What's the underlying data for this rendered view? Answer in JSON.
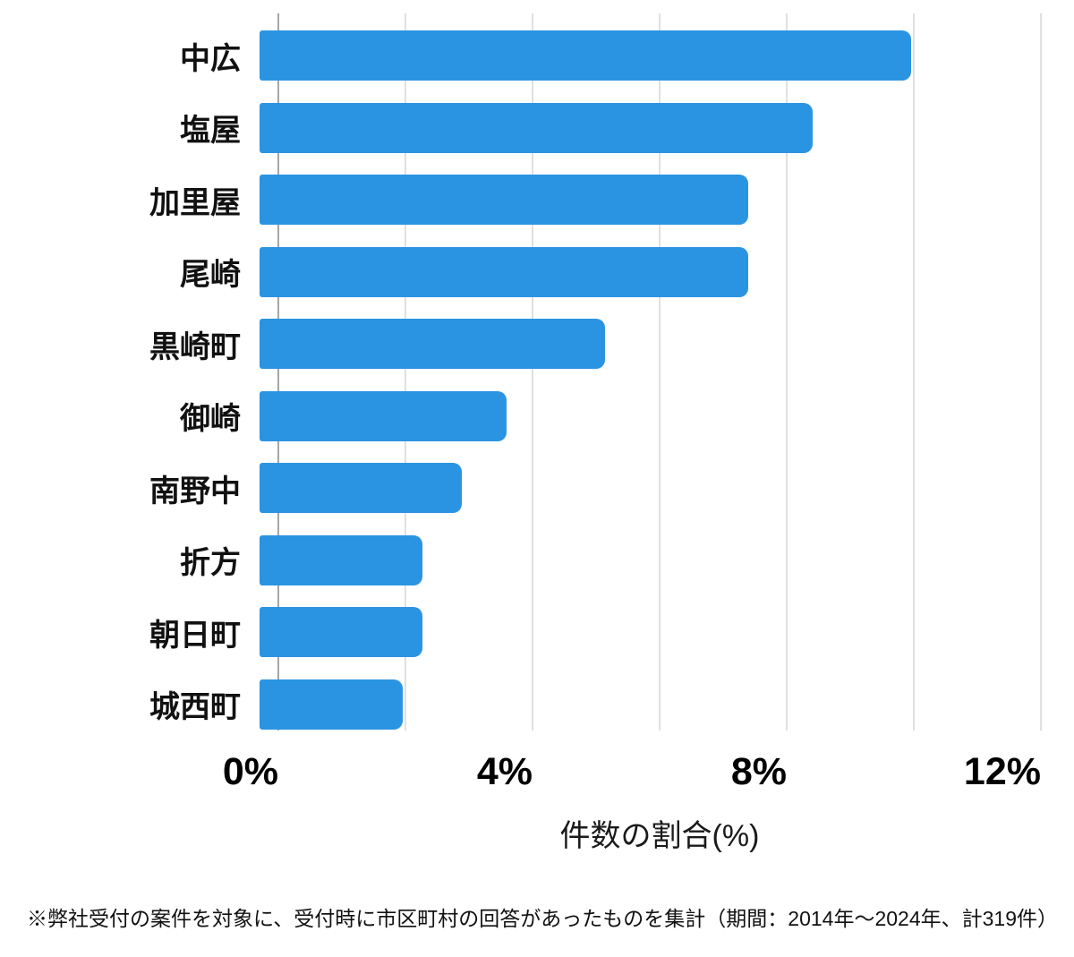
{
  "chart_data": {
    "type": "bar",
    "orientation": "horizontal",
    "title": "",
    "categories": [
      "中広",
      "塩屋",
      "加里屋",
      "尾崎",
      "黒崎町",
      "御崎",
      "南野中",
      "折方",
      "朝日町",
      "城西町"
    ],
    "values": [
      10.0,
      8.5,
      7.5,
      7.5,
      5.3,
      3.8,
      3.1,
      2.5,
      2.5,
      2.2
    ],
    "xlabel": "件数の割合(%)",
    "ylabel": "",
    "xlim": [
      0,
      12
    ],
    "x_ticks": [
      0,
      4,
      8,
      12
    ],
    "x_tick_labels": [
      "0%",
      "4%",
      "8%",
      "12%"
    ],
    "gridline_values": [
      0,
      2,
      4,
      6,
      8,
      10,
      12
    ],
    "grid": true,
    "legend": false,
    "bar_color": "#2b94e2",
    "gridline_color": "#e0e0e0",
    "axis_line_color": "#a6a6a6"
  },
  "footnote": "※弊社受付の案件を対象に、受付時に市区町村の回答があったものを集計（期間：2014年～2024年、計319件）"
}
